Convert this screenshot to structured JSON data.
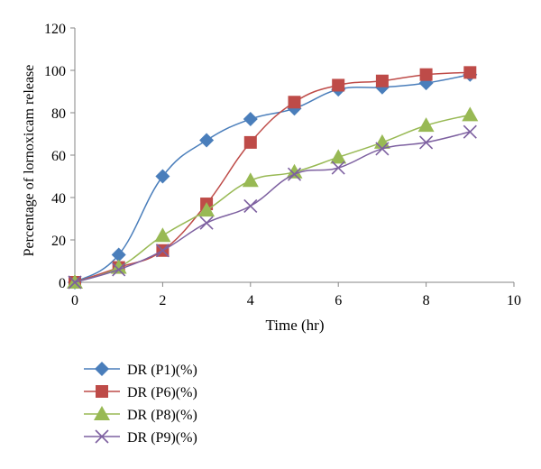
{
  "chart_data": {
    "type": "line",
    "title": "",
    "xlabel": "Time (hr)",
    "ylabel": "Percentage of lornoxicam release",
    "xlim": [
      0,
      10
    ],
    "ylim": [
      0,
      120
    ],
    "xticks": [
      0,
      2,
      4,
      6,
      8,
      10
    ],
    "yticks": [
      0,
      20,
      40,
      60,
      80,
      100,
      120
    ],
    "grid": false,
    "legend_position": "bottom-left",
    "x": [
      0,
      1,
      2,
      3,
      4,
      5,
      6,
      7,
      8,
      9
    ],
    "series": [
      {
        "name": "DR (P1)(%)",
        "color": "#4a7ebb",
        "marker": "diamond",
        "values": [
          0,
          13,
          50,
          67,
          77,
          82,
          91,
          92,
          94,
          98
        ]
      },
      {
        "name": "DR (P6)(%)",
        "color": "#be4b48",
        "marker": "square",
        "values": [
          0,
          7,
          15,
          37,
          66,
          85,
          93,
          95,
          98,
          99
        ]
      },
      {
        "name": "DR (P8)(%)",
        "color": "#98b954",
        "marker": "triangle",
        "values": [
          0,
          7,
          22,
          34,
          48,
          52,
          59,
          66,
          74,
          79
        ]
      },
      {
        "name": "DR (P9)(%)",
        "color": "#7d60a0",
        "marker": "x",
        "values": [
          0,
          6,
          15,
          28,
          36,
          51,
          54,
          63,
          66,
          71
        ]
      }
    ]
  }
}
